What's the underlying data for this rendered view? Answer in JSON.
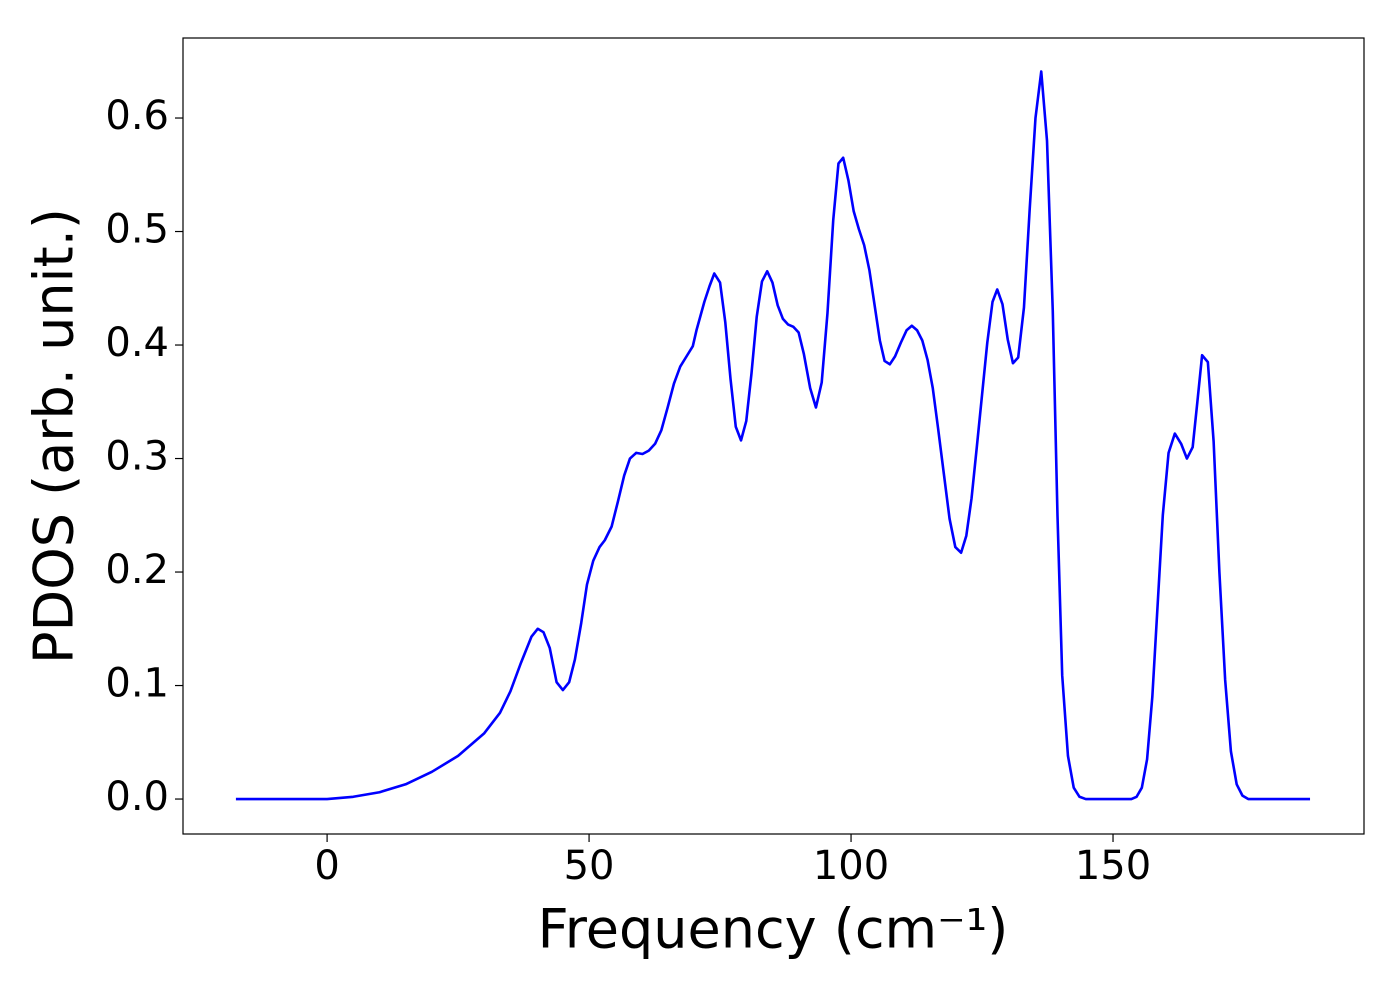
{
  "chart_data": {
    "type": "line",
    "x_label": "Frequency (cm⁻¹)",
    "y_label": "PDOS (arb. unit.)",
    "color": "#0000ff",
    "xlim": [
      -27.5,
      197.9
    ],
    "ylim": [
      -0.0308,
      0.6705
    ],
    "xticks": [
      0,
      50,
      100,
      150
    ],
    "yticks": [
      {
        "value": 0,
        "label": "0.0"
      },
      0.1,
      0.2,
      0.3,
      0.4,
      0.5,
      0.6
    ],
    "x": [
      -17.4,
      -10,
      0,
      5,
      10,
      15,
      20,
      25,
      30,
      33,
      35,
      37,
      39,
      40.2,
      41.3,
      42.5,
      43.8,
      45,
      46.2,
      47.3,
      48.5,
      49.6,
      50.8,
      52,
      53,
      54.3,
      55.5,
      56.7,
      57.8,
      59,
      60.2,
      61.4,
      62.6,
      63.8,
      65,
      66.2,
      67.4,
      68.6,
      69.8,
      70.5,
      72,
      73,
      73.9,
      75,
      76,
      77,
      78,
      79,
      80,
      81,
      82,
      83,
      84,
      85,
      86,
      87,
      88,
      89,
      90,
      91,
      92.2,
      93.3,
      94.4,
      95.5,
      96.6,
      97.6,
      98.5,
      99.5,
      100.5,
      101.5,
      102.5,
      103.5,
      104.5,
      105.5,
      106.4,
      107.4,
      108.4,
      109.5,
      110.6,
      111.6,
      112.6,
      113.6,
      114.6,
      115.6,
      116.6,
      117.7,
      118.8,
      119.9,
      121,
      122,
      123,
      124,
      125,
      126,
      127,
      127.9,
      128.9,
      129.9,
      130.9,
      131.9,
      133,
      134.1,
      135.2,
      136.3,
      137.4,
      138.5,
      139.4,
      140.3,
      141.4,
      142.5,
      143.6,
      144.8,
      150,
      153.5,
      154.5,
      155.5,
      156.5,
      157.5,
      158.5,
      159.5,
      160.6,
      161.8,
      163,
      164.1,
      165.2,
      166.1,
      167,
      168.1,
      169.2,
      170.3,
      171.4,
      172.5,
      173.6,
      174.7,
      175.8,
      180,
      187.6
    ],
    "values": [
      0,
      0,
      0,
      0.002,
      0.006,
      0.013,
      0.024,
      0.038,
      0.058,
      0.076,
      0.095,
      0.12,
      0.143,
      0.15,
      0.147,
      0.133,
      0.103,
      0.096,
      0.103,
      0.123,
      0.155,
      0.189,
      0.21,
      0.222,
      0.228,
      0.24,
      0.262,
      0.285,
      0.3,
      0.305,
      0.304,
      0.307,
      0.313,
      0.325,
      0.345,
      0.366,
      0.381,
      0.39,
      0.399,
      0.413,
      0.438,
      0.452,
      0.463,
      0.455,
      0.42,
      0.37,
      0.328,
      0.316,
      0.333,
      0.375,
      0.425,
      0.456,
      0.465,
      0.455,
      0.435,
      0.423,
      0.418,
      0.416,
      0.411,
      0.392,
      0.362,
      0.345,
      0.367,
      0.428,
      0.51,
      0.56,
      0.565,
      0.545,
      0.518,
      0.502,
      0.488,
      0.466,
      0.435,
      0.404,
      0.386,
      0.383,
      0.39,
      0.402,
      0.413,
      0.417,
      0.413,
      0.404,
      0.387,
      0.362,
      0.327,
      0.287,
      0.247,
      0.222,
      0.217,
      0.232,
      0.265,
      0.31,
      0.356,
      0.402,
      0.438,
      0.449,
      0.436,
      0.405,
      0.384,
      0.389,
      0.433,
      0.52,
      0.6,
      0.641,
      0.58,
      0.43,
      0.25,
      0.109,
      0.038,
      0.01,
      0.002,
      0,
      0,
      0,
      0.002,
      0.01,
      0.035,
      0.09,
      0.17,
      0.25,
      0.305,
      0.322,
      0.313,
      0.3,
      0.31,
      0.35,
      0.391,
      0.385,
      0.315,
      0.2,
      0.105,
      0.042,
      0.013,
      0.003,
      0,
      0,
      0
    ]
  }
}
